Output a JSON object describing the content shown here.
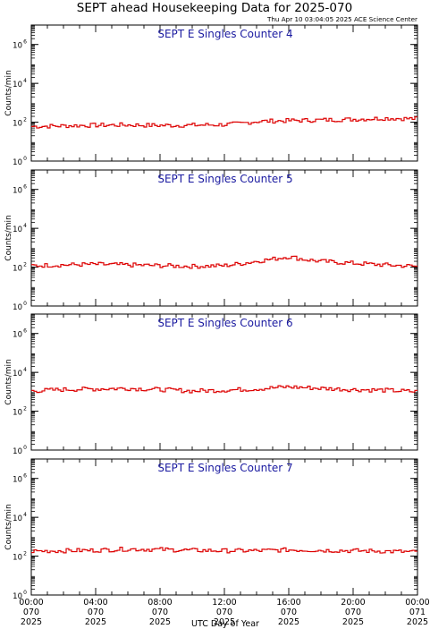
{
  "header": {
    "title": "SEPT ahead Housekeeping Data for 2025-070",
    "timestamp": "Thu Apr 10 03:04:05 2025 ACE Science Center"
  },
  "colors": {
    "trace": "#dd0000",
    "panel_title": "#1a1aa0",
    "axis": "#000000"
  },
  "x_axis": {
    "label": "UTC Day of Year",
    "ticks": [
      {
        "time": "00:00",
        "day": "070",
        "year": "2025",
        "hour": 0
      },
      {
        "time": "04:00",
        "day": "070",
        "year": "2025",
        "hour": 4
      },
      {
        "time": "08:00",
        "day": "070",
        "year": "2025",
        "hour": 8
      },
      {
        "time": "12:00",
        "day": "070",
        "year": "2025",
        "hour": 12
      },
      {
        "time": "16:00",
        "day": "070",
        "year": "2025",
        "hour": 16
      },
      {
        "time": "20:00",
        "day": "070",
        "year": "2025",
        "hour": 20
      },
      {
        "time": "00:00",
        "day": "071",
        "year": "2025",
        "hour": 24
      }
    ]
  },
  "y_axis": {
    "label": "Counts/min",
    "ticks": [
      {
        "base": "10",
        "exp": "0",
        "value": 1
      },
      {
        "base": "10",
        "exp": "2",
        "value": 100
      },
      {
        "base": "10",
        "exp": "4",
        "value": 10000
      },
      {
        "base": "10",
        "exp": "6",
        "value": 1000000
      }
    ]
  },
  "chart_data": [
    {
      "type": "line",
      "step": true,
      "title": "SEPT E Singles Counter 4",
      "ylabel": "Counts/min",
      "yscale": "log",
      "ylim": [
        1,
        10000000
      ],
      "xlim": [
        0,
        24
      ],
      "x_unit": "hours UTC, day 070 2025",
      "keypoints": [
        {
          "x": 0,
          "y": 60
        },
        {
          "x": 2,
          "y": 65
        },
        {
          "x": 4,
          "y": 70
        },
        {
          "x": 6,
          "y": 72
        },
        {
          "x": 8,
          "y": 68
        },
        {
          "x": 10,
          "y": 70
        },
        {
          "x": 12,
          "y": 75
        },
        {
          "x": 13,
          "y": 85
        },
        {
          "x": 14,
          "y": 110
        },
        {
          "x": 16,
          "y": 120
        },
        {
          "x": 18,
          "y": 130
        },
        {
          "x": 20,
          "y": 140
        },
        {
          "x": 22,
          "y": 160
        },
        {
          "x": 24,
          "y": 150
        }
      ]
    },
    {
      "type": "line",
      "step": true,
      "title": "SEPT E Singles Counter 5",
      "ylabel": "Counts/min",
      "yscale": "log",
      "ylim": [
        1,
        10000000
      ],
      "xlim": [
        0,
        24
      ],
      "x_unit": "hours UTC, day 070 2025",
      "keypoints": [
        {
          "x": 0,
          "y": 120
        },
        {
          "x": 2,
          "y": 130
        },
        {
          "x": 4,
          "y": 140
        },
        {
          "x": 6,
          "y": 130
        },
        {
          "x": 8,
          "y": 120
        },
        {
          "x": 10,
          "y": 110
        },
        {
          "x": 12,
          "y": 120
        },
        {
          "x": 13,
          "y": 150
        },
        {
          "x": 14,
          "y": 200
        },
        {
          "x": 15,
          "y": 260
        },
        {
          "x": 16,
          "y": 350
        },
        {
          "x": 17,
          "y": 250
        },
        {
          "x": 18,
          "y": 200
        },
        {
          "x": 20,
          "y": 160
        },
        {
          "x": 22,
          "y": 130
        },
        {
          "x": 24,
          "y": 110
        }
      ]
    },
    {
      "type": "line",
      "step": true,
      "title": "SEPT E Singles Counter 6",
      "ylabel": "Counts/min",
      "yscale": "log",
      "ylim": [
        1,
        10000000
      ],
      "xlim": [
        0,
        24
      ],
      "x_unit": "hours UTC, day 070 2025",
      "keypoints": [
        {
          "x": 0,
          "y": 1100
        },
        {
          "x": 2,
          "y": 1300
        },
        {
          "x": 4,
          "y": 1400
        },
        {
          "x": 6,
          "y": 1500
        },
        {
          "x": 8,
          "y": 1300
        },
        {
          "x": 10,
          "y": 1100
        },
        {
          "x": 12,
          "y": 1200
        },
        {
          "x": 14,
          "y": 1400
        },
        {
          "x": 16,
          "y": 1800
        },
        {
          "x": 18,
          "y": 1500
        },
        {
          "x": 20,
          "y": 1300
        },
        {
          "x": 22,
          "y": 1200
        },
        {
          "x": 24,
          "y": 1000
        }
      ]
    },
    {
      "type": "line",
      "step": true,
      "title": "SEPT E Singles Counter 7",
      "ylabel": "Counts/min",
      "yscale": "log",
      "ylim": [
        1,
        10000000
      ],
      "xlim": [
        0,
        24
      ],
      "x_unit": "hours UTC, day 070 2025",
      "keypoints": [
        {
          "x": 0,
          "y": 180
        },
        {
          "x": 2,
          "y": 190
        },
        {
          "x": 4,
          "y": 200
        },
        {
          "x": 6,
          "y": 230
        },
        {
          "x": 8,
          "y": 220
        },
        {
          "x": 10,
          "y": 200
        },
        {
          "x": 12,
          "y": 190
        },
        {
          "x": 14,
          "y": 190
        },
        {
          "x": 16,
          "y": 210
        },
        {
          "x": 18,
          "y": 200
        },
        {
          "x": 20,
          "y": 190
        },
        {
          "x": 22,
          "y": 180
        },
        {
          "x": 24,
          "y": 160
        }
      ]
    }
  ]
}
